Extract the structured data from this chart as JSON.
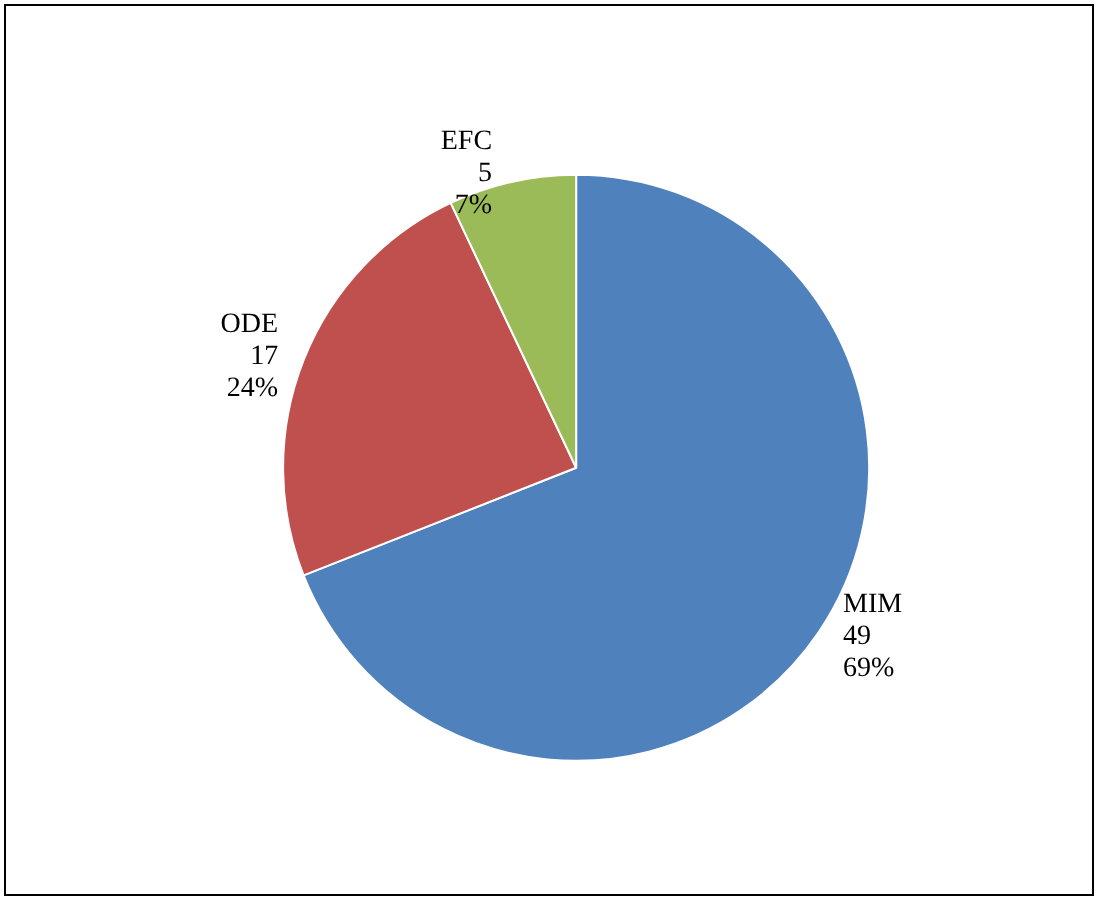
{
  "chart_data": {
    "type": "pie",
    "categories": [
      "MIM",
      "ODE",
      "EFC"
    ],
    "values": [
      49,
      17,
      5
    ],
    "value_labels": [
      "49\n69%",
      "17\n24%",
      "5\n7%"
    ],
    "colors": [
      "#4f81bd",
      "#c0504d",
      "#9bbb59"
    ],
    "legend": false
  }
}
